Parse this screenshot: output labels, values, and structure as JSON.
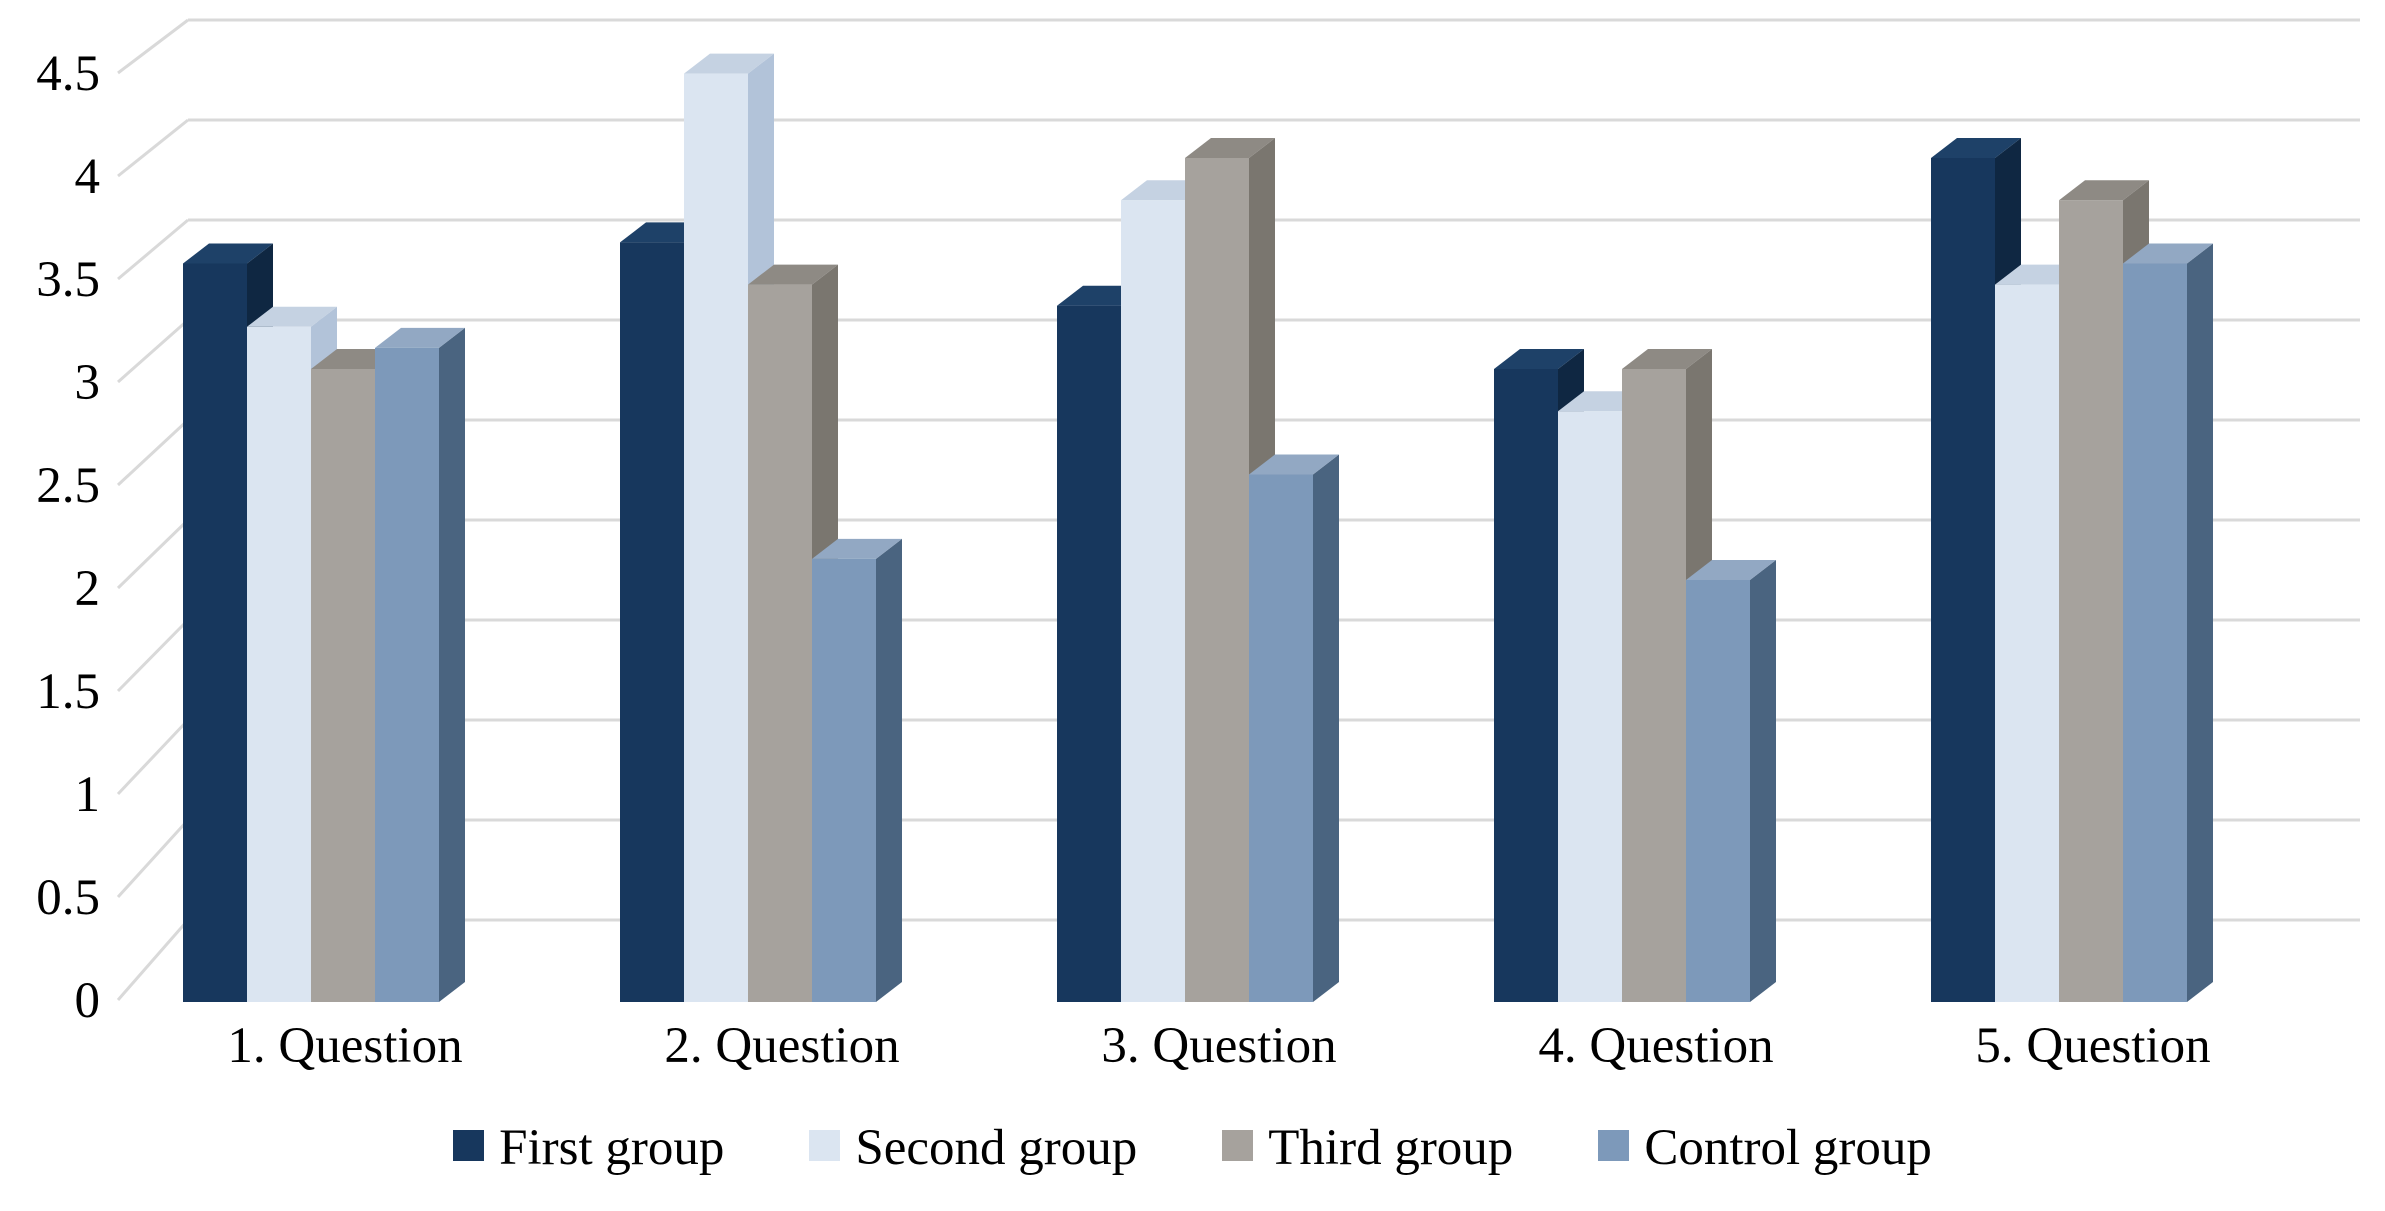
{
  "page": {
    "background": "#FFFFFF"
  },
  "chart_data": {
    "type": "bar",
    "style": "3d-clustered-column",
    "title": "",
    "categories": [
      "1. Question",
      "2. Question",
      "3. Question",
      "4. Question",
      "5. Question"
    ],
    "series": [
      {
        "name": "First group",
        "color": "#17375D",
        "color_top": "#1E4168",
        "color_side": "#0F2742",
        "values": [
          3.5,
          3.6,
          3.3,
          3.0,
          4.0
        ]
      },
      {
        "name": "Second group",
        "color": "#DBE5F1",
        "color_top": "#C5D2E2",
        "color_side": "#B2C3D9",
        "values": [
          3.2,
          4.4,
          3.8,
          2.8,
          3.4
        ]
      },
      {
        "name": "Third group",
        "color": "#A6A29D",
        "color_top": "#8E8A84",
        "color_side": "#7A766F",
        "values": [
          3.0,
          3.4,
          4.0,
          3.0,
          3.8
        ]
      },
      {
        "name": "Control group",
        "color": "#7D99BA",
        "color_top": "#92A8C3",
        "color_side": "#4A6480",
        "values": [
          3.1,
          2.1,
          2.5,
          2.0,
          3.5
        ]
      }
    ],
    "y_axis": {
      "min": 0,
      "max": 4.5,
      "step": 0.5,
      "tick_labels": [
        "0",
        "0.5",
        "1",
        "1.5",
        "2",
        "2.5",
        "3",
        "3.5",
        "4",
        "4.5"
      ]
    },
    "grid": true,
    "gridline_color": "#D9D9D9",
    "text_color": "#000000",
    "background_color": "#FFFFFF",
    "legend_position": "bottom"
  }
}
